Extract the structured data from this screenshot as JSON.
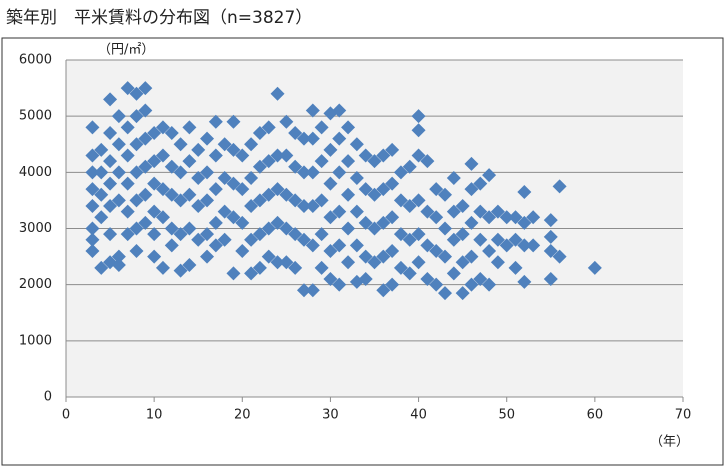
{
  "chart_data": {
    "type": "scatter",
    "title": "築年別　平米賃料の分布図（n=3827）",
    "x_label": "（年）",
    "y_label": "（円/㎡）",
    "color": "#4f81bd",
    "grid": true,
    "xlim": [
      0,
      70
    ],
    "xticks": [
      0,
      10,
      20,
      30,
      40,
      50,
      60,
      70
    ],
    "ylim": [
      0,
      6000
    ],
    "yticks": [
      0,
      1000,
      2000,
      3000,
      4000,
      5000,
      6000
    ],
    "x": [
      3,
      3,
      3,
      3,
      3,
      3,
      3,
      3,
      4,
      4,
      4,
      4,
      4,
      5,
      5,
      5,
      5,
      5,
      5,
      5,
      6,
      6,
      6,
      6,
      6,
      6,
      7,
      7,
      7,
      7,
      7,
      7,
      8,
      8,
      8,
      8,
      8,
      8,
      8,
      9,
      9,
      9,
      9,
      9,
      9,
      10,
      10,
      10,
      10,
      10,
      10,
      11,
      11,
      11,
      11,
      11,
      12,
      12,
      12,
      12,
      12,
      13,
      13,
      13,
      13,
      13,
      14,
      14,
      14,
      14,
      14,
      15,
      15,
      15,
      15,
      16,
      16,
      16,
      16,
      16,
      17,
      17,
      17,
      17,
      17,
      18,
      18,
      18,
      18,
      19,
      19,
      19,
      19,
      19,
      20,
      20,
      20,
      20,
      21,
      21,
      21,
      21,
      21,
      22,
      22,
      22,
      22,
      22,
      23,
      23,
      23,
      23,
      23,
      24,
      24,
      24,
      24,
      24,
      25,
      25,
      25,
      25,
      25,
      26,
      26,
      26,
      26,
      26,
      27,
      27,
      27,
      27,
      27,
      28,
      28,
      28,
      28,
      28,
      28,
      29,
      29,
      29,
      29,
      29,
      30,
      30,
      30,
      30,
      30,
      30,
      31,
      31,
      31,
      31,
      31,
      31,
      32,
      32,
      32,
      32,
      32,
      33,
      33,
      33,
      33,
      33,
      34,
      34,
      34,
      34,
      34,
      35,
      35,
      35,
      35,
      36,
      36,
      36,
      36,
      36,
      37,
      37,
      37,
      37,
      37,
      38,
      38,
      38,
      38,
      39,
      39,
      39,
      39,
      40,
      40,
      40,
      40,
      40,
      40,
      41,
      41,
      41,
      41,
      42,
      42,
      42,
      42,
      43,
      43,
      43,
      43,
      44,
      44,
      44,
      44,
      45,
      45,
      45,
      45,
      46,
      46,
      46,
      46,
      46,
      47,
      47,
      47,
      47,
      48,
      48,
      48,
      48,
      49,
      49,
      49,
      50,
      50,
      51,
      51,
      51,
      52,
      52,
      52,
      52,
      53,
      53,
      55,
      55,
      55,
      55,
      56,
      56,
      60
    ],
    "values": [
      4800,
      4300,
      4000,
      3700,
      3400,
      3000,
      2800,
      2600,
      4400,
      4000,
      3600,
      3200,
      2300,
      5300,
      4700,
      4200,
      3800,
      3400,
      2900,
      2400,
      5000,
      4500,
      4000,
      3500,
      2500,
      2350,
      5500,
      4800,
      4300,
      3800,
      3300,
      2900,
      5400,
      5000,
      4500,
      4000,
      3500,
      3000,
      2600,
      5500,
      5100,
      4600,
      4100,
      3600,
      3100,
      4700,
      4200,
      3800,
      3300,
      2900,
      2500,
      4800,
      4300,
      3700,
      3200,
      2300,
      4700,
      4100,
      3600,
      3000,
      2700,
      4500,
      4000,
      3500,
      2900,
      2250,
      4800,
      4200,
      3600,
      3000,
      2350,
      4400,
      3900,
      3400,
      2800,
      4600,
      4000,
      3500,
      2900,
      2500,
      4900,
      4300,
      3700,
      3100,
      2700,
      4500,
      3900,
      3300,
      2800,
      4900,
      4400,
      3800,
      3200,
      2200,
      4300,
      3700,
      3100,
      2600,
      4500,
      3900,
      3400,
      2800,
      2200,
      4700,
      4100,
      3500,
      2900,
      2300,
      4800,
      4200,
      3600,
      3000,
      2500,
      5400,
      4300,
      3700,
      3100,
      2400,
      4900,
      4300,
      3600,
      3000,
      2400,
      4700,
      4100,
      3500,
      2900,
      2300,
      4600,
      4000,
      3400,
      2800,
      1900,
      5100,
      4600,
      4000,
      3400,
      2700,
      1900,
      4800,
      4200,
      3500,
      2900,
      2300,
      5050,
      4400,
      3800,
      3200,
      2600,
      2100,
      5100,
      4600,
      4000,
      3300,
      2700,
      2000,
      4800,
      4200,
      3600,
      3000,
      2400,
      4500,
      3900,
      3300,
      2700,
      2050,
      4300,
      3700,
      3100,
      2500,
      2100,
      4200,
      3600,
      3000,
      2400,
      4300,
      3700,
      3100,
      2500,
      1900,
      4400,
      3800,
      3200,
      2600,
      2000,
      4000,
      3500,
      2900,
      2300,
      4100,
      3400,
      2800,
      2200,
      5000,
      4750,
      4300,
      3500,
      2900,
      2400,
      4200,
      3300,
      2700,
      2100,
      3700,
      3200,
      2600,
      2000,
      3600,
      3000,
      2500,
      1850,
      3900,
      3300,
      2800,
      2200,
      3400,
      2900,
      2400,
      1850,
      4150,
      3700,
      3100,
      2500,
      2000,
      3800,
      3300,
      2800,
      2100,
      3950,
      3200,
      2600,
      2000,
      3300,
      2800,
      2400,
      3200,
      2700,
      3200,
      2800,
      2300,
      3650,
      3100,
      2700,
      2050,
      3200,
      2700,
      3150,
      2850,
      2600,
      2100,
      3750,
      2500,
      2300
    ]
  }
}
